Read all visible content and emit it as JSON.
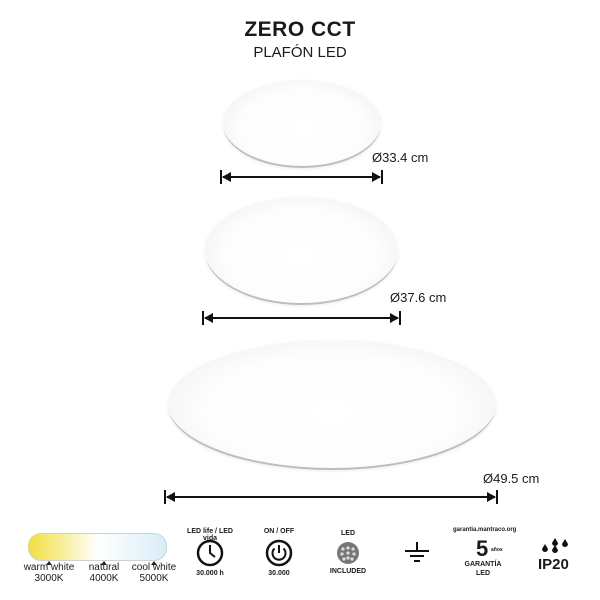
{
  "header": {
    "title": "ZERO CCT",
    "subtitle": "PLAFÓN LED"
  },
  "sizes": [
    {
      "label": "Ø33.4 cm"
    },
    {
      "label": "Ø37.6 cm"
    },
    {
      "label": "Ø49.5 cm"
    }
  ],
  "color_temps": [
    {
      "name": "warm white",
      "kelvin": "3000K"
    },
    {
      "name": "natural",
      "kelvin": "4000K"
    },
    {
      "name": "cool white",
      "kelvin": "5000K"
    }
  ],
  "colors": {
    "warm": "#f2df3f",
    "cool": "#d9ecf8"
  },
  "features": {
    "led_life": {
      "icon": "clock-icon",
      "top": "LED life / LED vida",
      "bottom": "30.000 h"
    },
    "on_off": {
      "icon": "power-icon",
      "top": "ON / OFF",
      "bottom": "30.000"
    },
    "led_included": {
      "icon": "led-chip-icon",
      "top": "LED",
      "bottom": "INCLUDED"
    },
    "ground": {
      "icon": "ground-icon"
    },
    "warranty": {
      "icon": "warranty-icon",
      "top": "garantia.mantraco.org",
      "number": "5",
      "years": "años",
      "middle": "GARANTÍA",
      "bottom": "LED"
    },
    "ip": {
      "icon": "water-drops-icon",
      "label": "IP20"
    }
  }
}
